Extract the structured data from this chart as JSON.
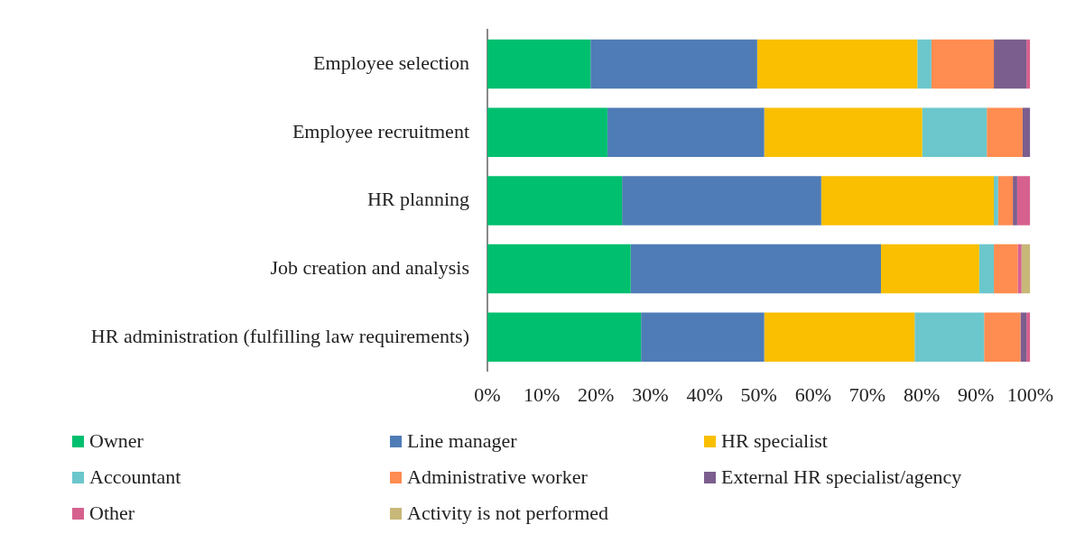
{
  "chart_data": {
    "type": "bar",
    "orientation": "horizontal",
    "stacked": true,
    "legend": "bottom",
    "grid": false,
    "categories": [
      "Employee selection",
      "Employee recruitment",
      "HR planning",
      "Job creation and analysis",
      "HR administration (fulfilling law requirements)"
    ],
    "xlim": [
      0,
      100
    ],
    "xticks": [
      {
        "value": 0,
        "label": "0%"
      },
      {
        "value": 10,
        "label": "10%"
      },
      {
        "value": 20,
        "label": "20%"
      },
      {
        "value": 30,
        "label": "30%"
      },
      {
        "value": 40,
        "label": "40%"
      },
      {
        "value": 50,
        "label": "50%"
      },
      {
        "value": 60,
        "label": "60%"
      },
      {
        "value": 70,
        "label": "70%"
      },
      {
        "value": 80,
        "label": "80%"
      },
      {
        "value": 90,
        "label": "90%"
      },
      {
        "value": 100,
        "label": "100%"
      }
    ],
    "series": [
      {
        "name": "Owner",
        "color": "#00bf6f",
        "values": [
          19.0,
          22.1,
          24.8,
          26.4,
          28.3
        ]
      },
      {
        "name": "Line manager",
        "color": "#4f7cb6",
        "values": [
          30.7,
          28.9,
          36.7,
          46.1,
          22.7
        ]
      },
      {
        "name": "HR specialist",
        "color": "#f9bf00",
        "values": [
          29.5,
          29.1,
          31.8,
          18.1,
          27.7
        ]
      },
      {
        "name": "Accountant",
        "color": "#6bc7cc",
        "values": [
          2.6,
          11.9,
          0.8,
          2.7,
          12.8
        ]
      },
      {
        "name": "Administrative worker",
        "color": "#ff8c50",
        "values": [
          11.5,
          6.6,
          2.7,
          4.4,
          6.7
        ]
      },
      {
        "name": "External HR specialist/agency",
        "color": "#7b5e8e",
        "values": [
          6.0,
          1.4,
          0.8,
          0,
          1.1
        ]
      },
      {
        "name": "Other",
        "color": "#d6618f",
        "values": [
          0.7,
          0,
          2.4,
          0.7,
          0.7
        ]
      },
      {
        "name": "Activity is not performed",
        "color": "#c8b878",
        "values": [
          0,
          0,
          0,
          1.6,
          0
        ]
      }
    ]
  }
}
